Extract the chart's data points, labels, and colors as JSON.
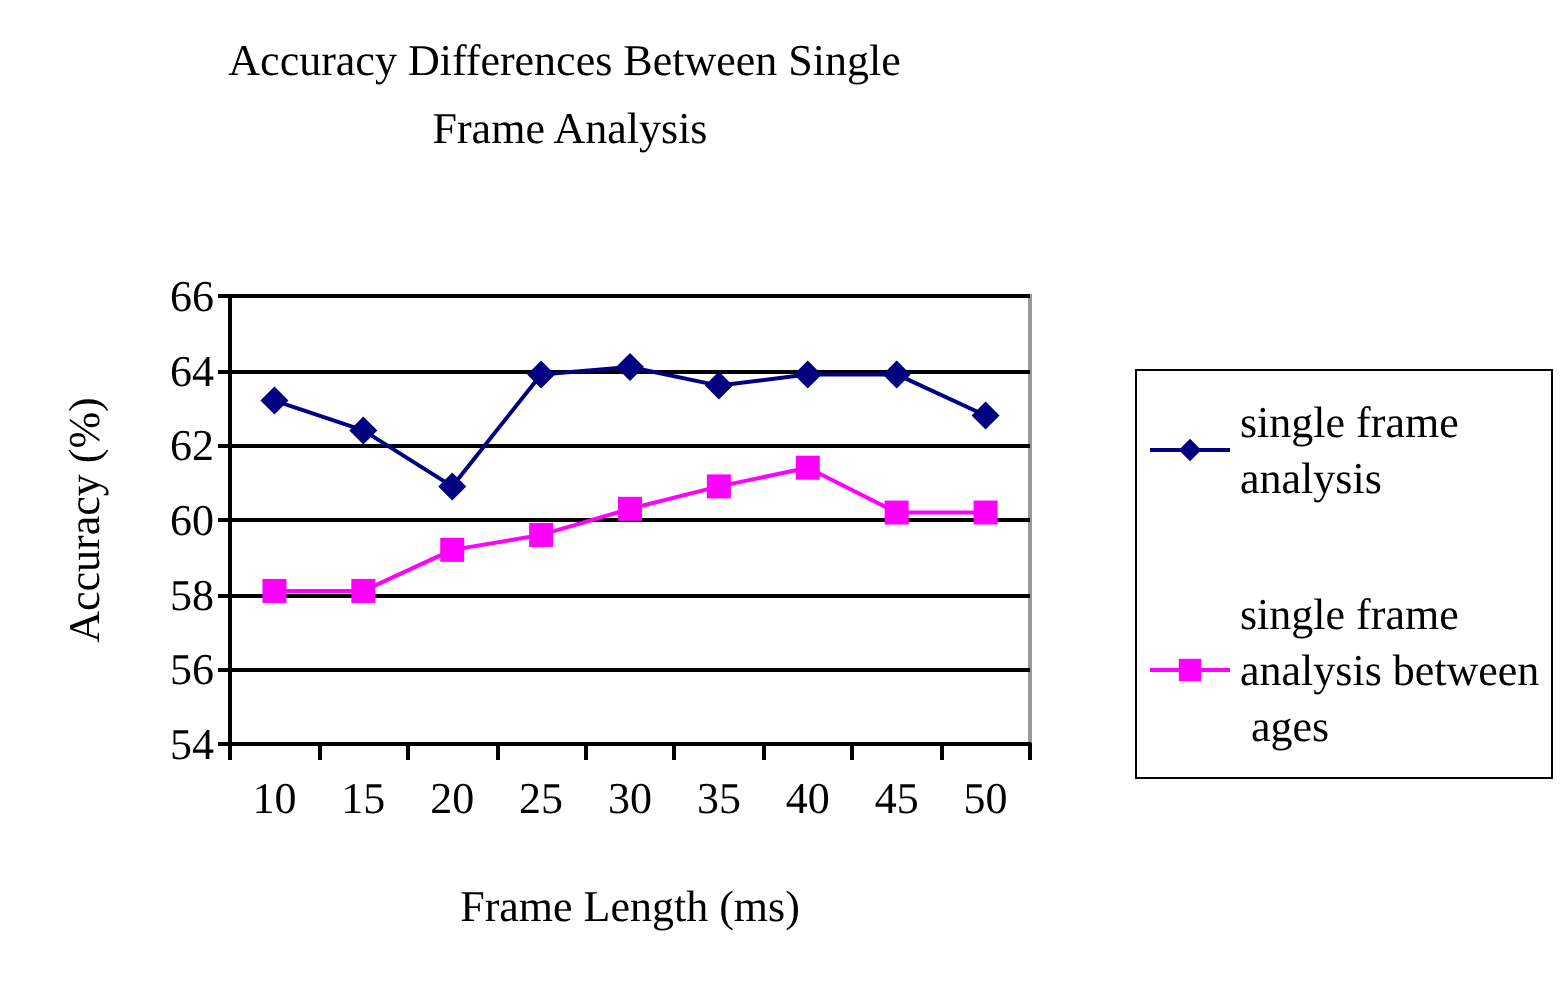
{
  "chart_data": {
    "type": "line",
    "title": "Accuracy Differences Between Single Frame Analysis",
    "xlabel": "Frame Length (ms)",
    "ylabel": "Accuracy (%)",
    "categories": [
      "10",
      "15",
      "20",
      "25",
      "30",
      "35",
      "40",
      "45",
      "50"
    ],
    "series": [
      {
        "name": "single frame analysis",
        "color": "#000080",
        "marker": "diamond",
        "values": [
          63.2,
          62.4,
          60.9,
          63.9,
          64.1,
          63.6,
          63.9,
          63.9,
          62.8
        ]
      },
      {
        "name": "single frame analysis between ages",
        "color": "#ff00ff",
        "marker": "square",
        "values": [
          58.1,
          58.1,
          59.2,
          59.6,
          60.3,
          60.9,
          61.4,
          60.2,
          60.2
        ]
      }
    ],
    "ylim": [
      54,
      66
    ],
    "yticks": [
      54,
      56,
      58,
      60,
      62,
      64,
      66
    ],
    "grid": "y",
    "legend": "right"
  }
}
